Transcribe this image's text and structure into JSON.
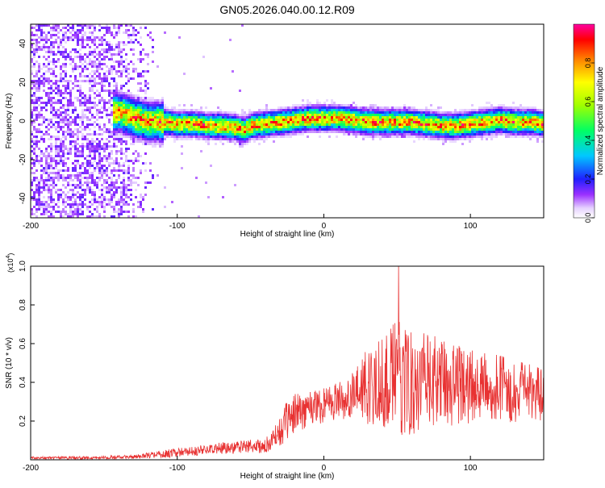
{
  "title": "GN05.2026.040.00.12.R09",
  "chart_data": [
    {
      "type": "heatmap",
      "xlabel": "Height of straight line (km)",
      "ylabel": "Frequency (Hz)",
      "xlim": [
        -200,
        150
      ],
      "ylim": [
        -50,
        50
      ],
      "x_ticks": [
        -200,
        -100,
        0,
        100
      ],
      "y_ticks": [
        -40,
        -20,
        0,
        20,
        40
      ],
      "colorbar": {
        "label": "Normalized spectral amplitude",
        "range": [
          0,
          1
        ],
        "ticks": [
          "0.0",
          "0.2",
          "0.4",
          "0.6",
          "0.8"
        ]
      },
      "ridge": {
        "x": [
          -140,
          -130,
          -120,
          -110,
          -100,
          -90,
          -80,
          -70,
          -60,
          -55,
          -50,
          -40,
          -30,
          -20,
          -10,
          0,
          10,
          20,
          30,
          40,
          50,
          60,
          70,
          80,
          90,
          100,
          110,
          120,
          130,
          140,
          150
        ],
        "y": [
          5,
          2,
          0,
          0,
          -1,
          -1,
          -2,
          -2,
          -3,
          -4,
          -2,
          -1,
          0,
          1,
          2,
          2,
          2,
          1,
          0,
          0,
          0,
          0,
          -1,
          -2,
          -2,
          -1,
          0,
          1,
          0,
          0,
          -1
        ]
      },
      "noise_region_x": [
        -200,
        -115
      ]
    },
    {
      "type": "line",
      "xlabel": "Height of straight line (km)",
      "ylabel": "SNR (10 * v/v)",
      "y_multiplier": "(x10^4)",
      "xlim": [
        -200,
        150
      ],
      "ylim": [
        0,
        1.0
      ],
      "x_ticks": [
        -200,
        -100,
        0,
        100
      ],
      "y_ticks": [
        "0.2",
        "0.4",
        "0.6",
        "0.8",
        "1.0"
      ],
      "line_color": "#e83232",
      "envelope": {
        "x": [
          -200,
          -160,
          -130,
          -110,
          -90,
          -70,
          -50,
          -40,
          -35,
          -30,
          -25,
          -20,
          -10,
          0,
          10,
          20,
          30,
          40,
          50,
          60,
          70,
          80,
          90,
          100,
          110,
          120,
          130,
          140,
          150
        ],
        "mean": [
          0.01,
          0.01,
          0.015,
          0.03,
          0.045,
          0.06,
          0.07,
          0.07,
          0.1,
          0.15,
          0.2,
          0.24,
          0.27,
          0.29,
          0.31,
          0.33,
          0.38,
          0.41,
          0.42,
          0.41,
          0.4,
          0.4,
          0.39,
          0.38,
          0.37,
          0.37,
          0.35,
          0.35,
          0.34
        ],
        "spread": [
          0.006,
          0.008,
          0.01,
          0.02,
          0.025,
          0.03,
          0.035,
          0.04,
          0.05,
          0.08,
          0.1,
          0.1,
          0.1,
          0.1,
          0.1,
          0.12,
          0.2,
          0.25,
          0.3,
          0.28,
          0.25,
          0.23,
          0.22,
          0.2,
          0.18,
          0.17,
          0.16,
          0.15,
          0.14
        ]
      },
      "peak": {
        "x": 51,
        "y": 1.0
      }
    }
  ]
}
